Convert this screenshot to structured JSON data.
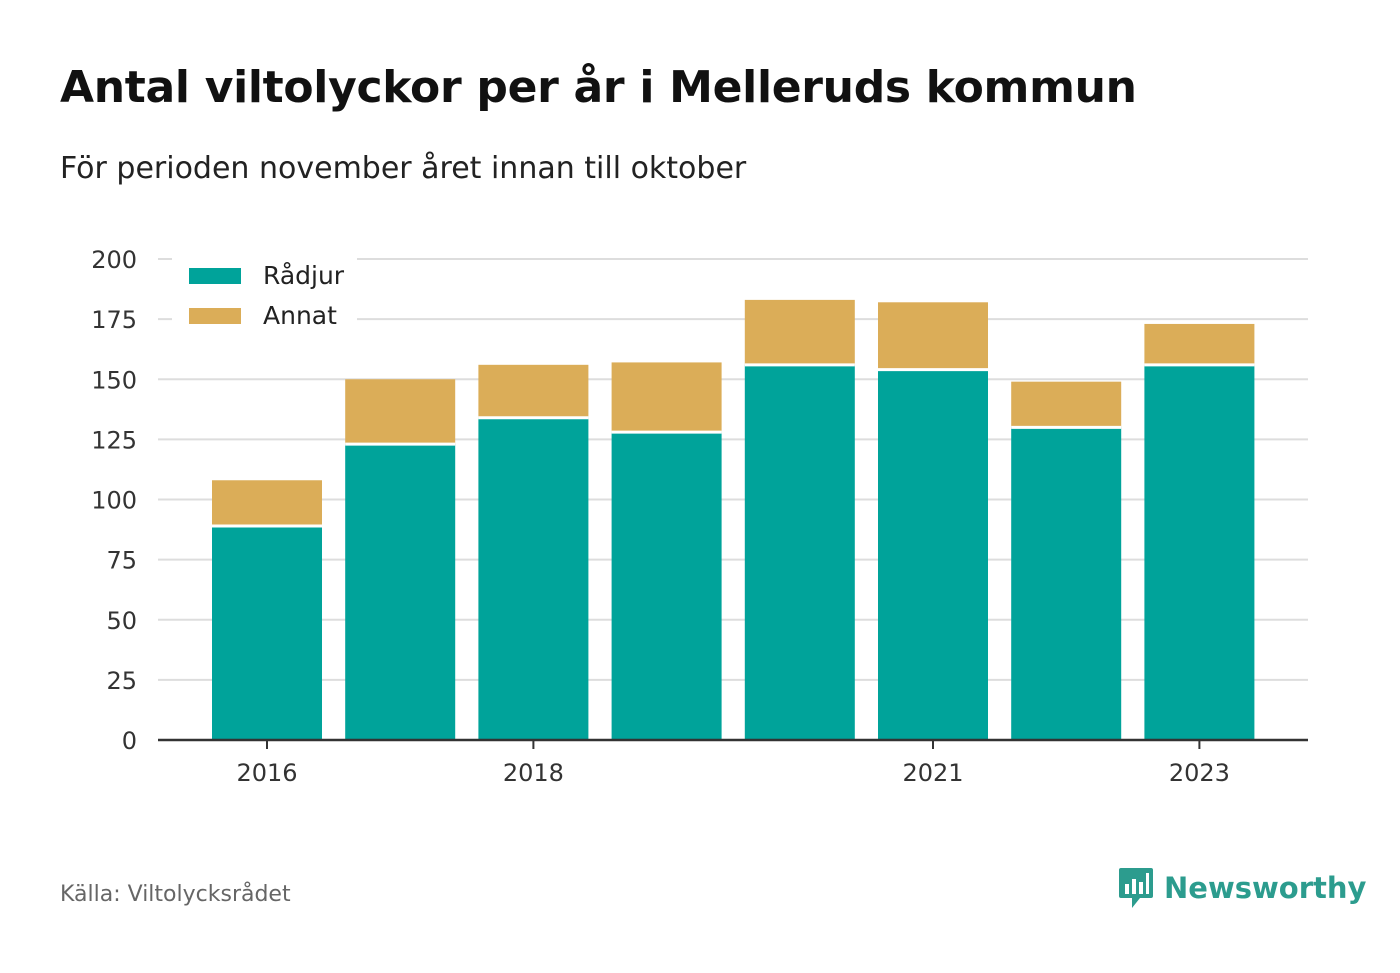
{
  "title": "Antal viltolyckor per år i Melleruds kommun",
  "subtitle": "För perioden november året innan till oktober",
  "source": "Källa: Viltolycksrådet",
  "brand": {
    "name": "Newsworthy",
    "icon": "newsworthy-logo-icon"
  },
  "colors": {
    "radjur": "#00a39a",
    "annat": "#dbad58",
    "grid": "#dddddd",
    "axis": "#333333"
  },
  "chart_data": {
    "type": "bar",
    "stacked": true,
    "title": "Antal viltolyckor per år i Melleruds kommun",
    "subtitle": "För perioden november året innan till oktober",
    "categories": [
      "2016",
      "2017",
      "2018",
      "2019",
      "2020",
      "2021",
      "2022",
      "2023"
    ],
    "x_tick_labels": [
      "2016",
      "",
      "2018",
      "",
      "",
      "2021",
      "",
      "2023"
    ],
    "series": [
      {
        "name": "Rådjur",
        "color": "#00a39a",
        "values": [
          89,
          123,
          134,
          128,
          156,
          154,
          130,
          156
        ]
      },
      {
        "name": "Annat",
        "color": "#dbad58",
        "values": [
          19,
          27,
          22,
          29,
          27,
          28,
          19,
          17
        ]
      }
    ],
    "ylim": [
      0,
      200
    ],
    "yticks": [
      0,
      25,
      50,
      75,
      100,
      125,
      150,
      175,
      200
    ],
    "grid": true,
    "legend": "top-left",
    "xlabel": "",
    "ylabel": ""
  }
}
